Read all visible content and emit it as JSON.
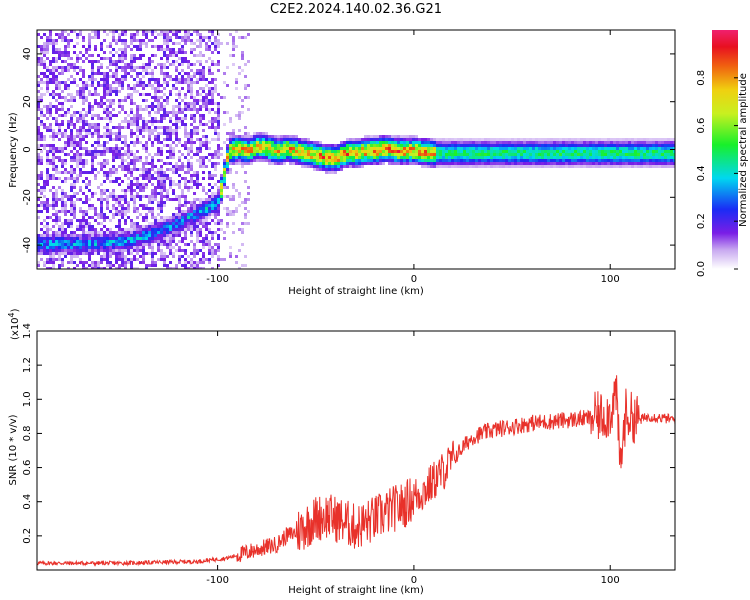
{
  "title": "C2E2.2024.140.02.36.G21",
  "chart_data": [
    {
      "type": "heatmap",
      "xlabel": "Height of straight line (km)",
      "ylabel": "Frequency (Hz)",
      "xlim": [
        -192,
        133
      ],
      "ylim": [
        -50,
        50
      ],
      "x_ticks": [
        -100,
        0,
        100
      ],
      "y_ticks": [
        -40,
        -20,
        0,
        20,
        40
      ],
      "colorbar": {
        "label": "Normalized spectral amplitude",
        "ticks": [
          0.0,
          0.2,
          0.4,
          0.6,
          0.8
        ],
        "range": [
          0,
          1
        ]
      },
      "ridge": {
        "x": [
          -192,
          -170,
          -150,
          -135,
          -120,
          -110,
          -104,
          -100,
          -95,
          -90,
          -85,
          -80,
          -75,
          -70,
          -65,
          -60,
          -55,
          -50,
          -45,
          -40,
          -35,
          -30,
          -25,
          -20,
          -15,
          -10,
          -5,
          0,
          10,
          30,
          50,
          70,
          90,
          100,
          110,
          120,
          133
        ],
        "y": [
          -39,
          -39,
          -38,
          -35,
          -30,
          -26,
          -23,
          -21,
          0,
          1,
          0,
          2,
          1,
          0,
          1,
          0,
          -1,
          -2,
          -3,
          -3,
          -1,
          -1,
          0,
          0,
          1,
          0,
          0,
          0,
          -1,
          -1,
          -1,
          -1,
          -1,
          -1,
          -1,
          -1,
          -1
        ]
      }
    },
    {
      "type": "line",
      "xlabel": "Height of straight line (km)",
      "ylabel": "SNR (10 * v/v)",
      "y_scale_label": "(x10",
      "y_scale_exp": "4",
      "xlim": [
        -192,
        133
      ],
      "ylim": [
        0,
        1.4
      ],
      "x_ticks": [
        -100,
        0,
        100
      ],
      "y_ticks": [
        0.2,
        0.4,
        0.6,
        0.8,
        1.0,
        1.2,
        1.4
      ],
      "series": [
        {
          "color": "#e8312a",
          "x": [
            -192,
            -150,
            -110,
            -95,
            -80,
            -70,
            -65,
            -60,
            -55,
            -50,
            -45,
            -40,
            -35,
            -30,
            -25,
            -20,
            -15,
            -10,
            -5,
            0,
            5,
            10,
            15,
            20,
            25,
            30,
            40,
            50,
            60,
            70,
            80,
            90,
            95,
            100,
            103,
            105,
            108,
            110,
            115,
            120,
            133
          ],
          "y": [
            0.04,
            0.04,
            0.05,
            0.07,
            0.12,
            0.15,
            0.2,
            0.22,
            0.26,
            0.3,
            0.32,
            0.3,
            0.28,
            0.25,
            0.27,
            0.3,
            0.33,
            0.36,
            0.38,
            0.43,
            0.46,
            0.52,
            0.58,
            0.65,
            0.72,
            0.78,
            0.82,
            0.84,
            0.86,
            0.87,
            0.88,
            0.89,
            0.9,
            0.92,
            1.05,
            0.6,
            0.92,
            0.9,
            0.88,
            0.9,
            0.88
          ]
        }
      ]
    }
  ]
}
